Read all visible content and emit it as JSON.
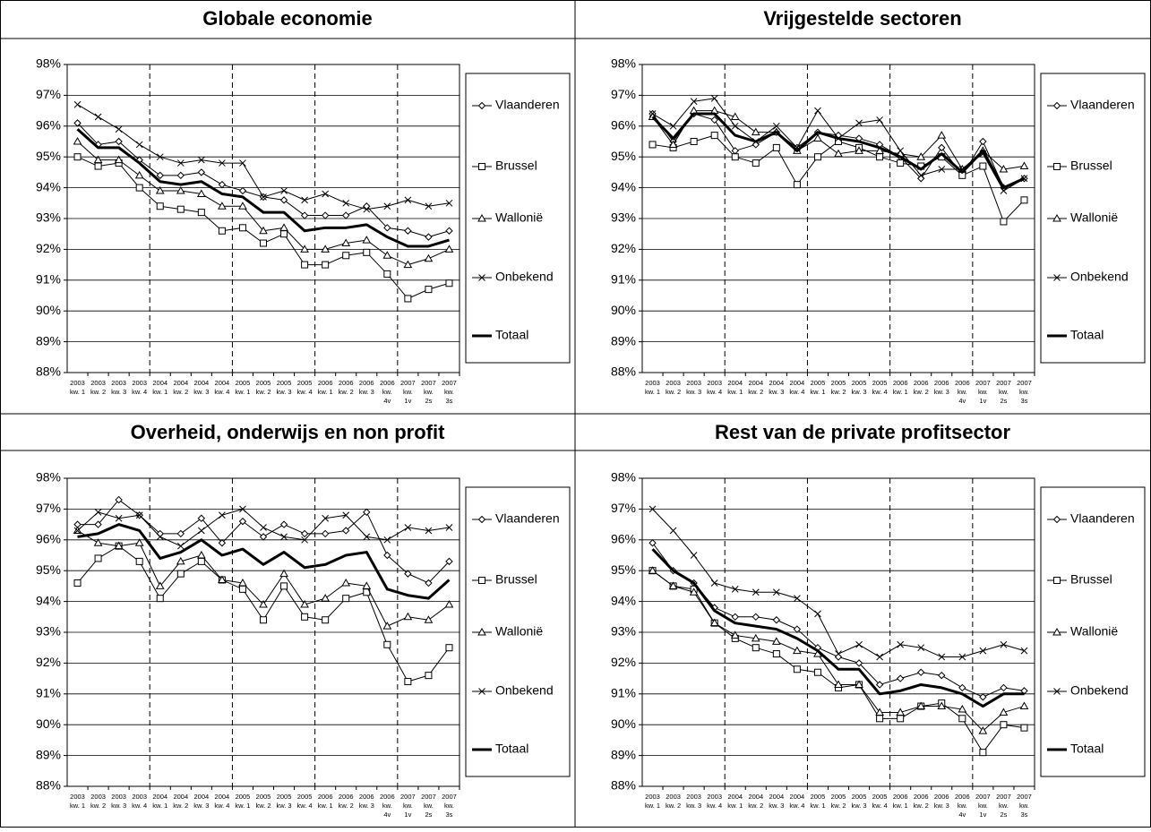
{
  "chart_data": [
    {
      "type": "line",
      "title": "Globale economie",
      "categories": [
        [
          "2003",
          "kw. 1"
        ],
        [
          "2003",
          "kw. 2"
        ],
        [
          "2003",
          "kw. 3"
        ],
        [
          "2003",
          "kw. 4"
        ],
        [
          "2004",
          "kw. 1"
        ],
        [
          "2004",
          "kw. 2"
        ],
        [
          "2004",
          "kw. 3"
        ],
        [
          "2004",
          "kw. 4"
        ],
        [
          "2005",
          "kw. 1"
        ],
        [
          "2005",
          "kw. 2"
        ],
        [
          "2005",
          "kw. 3"
        ],
        [
          "2005",
          "kw. 4"
        ],
        [
          "2006",
          "kw. 1"
        ],
        [
          "2006",
          "kw. 2"
        ],
        [
          "2006",
          "kw. 3"
        ],
        [
          "2006",
          "kw.",
          "4v"
        ],
        [
          "2007",
          "kw.",
          "1v"
        ],
        [
          "2007",
          "kw.",
          "2s"
        ],
        [
          "2007",
          "kw.",
          "3s"
        ]
      ],
      "ylim": [
        88,
        98
      ],
      "yticks": [
        {
          "value": 88,
          "label": "88%"
        },
        {
          "value": 89,
          "label": "89%"
        },
        {
          "value": 90,
          "label": "90%"
        },
        {
          "value": 91,
          "label": "91%"
        },
        {
          "value": 92,
          "label": "92%"
        },
        {
          "value": 93,
          "label": "93%"
        },
        {
          "value": 94,
          "label": "94%"
        },
        {
          "value": 95,
          "label": "95%"
        },
        {
          "value": 96,
          "label": "96%"
        },
        {
          "value": 97,
          "label": "97%"
        },
        {
          "value": 98,
          "label": "98%"
        }
      ],
      "grid": true,
      "series": [
        {
          "name": "Vlaanderen",
          "color": "#000000",
          "marker": "diamond",
          "line_width": 1,
          "values": [
            96.1,
            95.4,
            95.5,
            94.9,
            94.4,
            94.4,
            94.5,
            94.1,
            93.9,
            93.7,
            93.6,
            93.1,
            93.1,
            93.1,
            93.4,
            92.7,
            92.6,
            92.4,
            92.6
          ]
        },
        {
          "name": "Brussel",
          "color": "#000000",
          "marker": "square",
          "line_width": 1,
          "values": [
            95.0,
            94.7,
            94.8,
            94.0,
            93.4,
            93.3,
            93.2,
            92.6,
            92.7,
            92.2,
            92.5,
            91.5,
            91.5,
            91.8,
            91.9,
            91.2,
            90.4,
            90.7,
            90.9
          ]
        },
        {
          "name": "Wallonië",
          "color": "#000000",
          "marker": "triangle",
          "line_width": 1,
          "values": [
            95.5,
            94.9,
            94.9,
            94.4,
            93.9,
            93.9,
            93.8,
            93.4,
            93.4,
            92.6,
            92.7,
            92.0,
            92.0,
            92.2,
            92.3,
            91.8,
            91.5,
            91.7,
            92.0
          ]
        },
        {
          "name": "Onbekend",
          "color": "#000000",
          "marker": "x",
          "line_width": 1,
          "values": [
            96.7,
            96.3,
            95.9,
            95.4,
            95.0,
            94.8,
            94.9,
            94.8,
            94.8,
            93.7,
            93.9,
            93.6,
            93.8,
            93.5,
            93.3,
            93.4,
            93.6,
            93.4,
            93.5
          ]
        },
        {
          "name": "Totaal",
          "color": "#000000",
          "marker": "none",
          "line_width": 3,
          "values": [
            95.9,
            95.3,
            95.3,
            94.8,
            94.2,
            94.1,
            94.2,
            93.8,
            93.7,
            93.2,
            93.2,
            92.6,
            92.7,
            92.7,
            92.8,
            92.4,
            92.1,
            92.1,
            92.3
          ]
        }
      ]
    },
    {
      "type": "line",
      "title": "Vrijgestelde sectoren",
      "categories": [
        [
          "2003",
          "kw. 1"
        ],
        [
          "2003",
          "kw. 2"
        ],
        [
          "2003",
          "kw. 3"
        ],
        [
          "2003",
          "kw. 4"
        ],
        [
          "2004",
          "kw. 1"
        ],
        [
          "2004",
          "kw. 2"
        ],
        [
          "2004",
          "kw. 3"
        ],
        [
          "2004",
          "kw. 4"
        ],
        [
          "2005",
          "kw. 1"
        ],
        [
          "2005",
          "kw. 2"
        ],
        [
          "2005",
          "kw. 3"
        ],
        [
          "2005",
          "kw. 4"
        ],
        [
          "2006",
          "kw. 1"
        ],
        [
          "2006",
          "kw. 2"
        ],
        [
          "2006",
          "kw. 3"
        ],
        [
          "2006",
          "kw.",
          "4v"
        ],
        [
          "2007",
          "kw.",
          "1v"
        ],
        [
          "2007",
          "kw.",
          "2s"
        ],
        [
          "2007",
          "kw.",
          "3s"
        ]
      ],
      "ylim": [
        88,
        98
      ],
      "yticks": [
        {
          "value": 88,
          "label": "88%"
        },
        {
          "value": 89,
          "label": "89%"
        },
        {
          "value": 90,
          "label": "90%"
        },
        {
          "value": 91,
          "label": "91%"
        },
        {
          "value": 92,
          "label": "92%"
        },
        {
          "value": 93,
          "label": "93%"
        },
        {
          "value": 94,
          "label": "94%"
        },
        {
          "value": 95,
          "label": "95%"
        },
        {
          "value": 96,
          "label": "96%"
        },
        {
          "value": 97,
          "label": "97%"
        },
        {
          "value": 98,
          "label": "98%"
        }
      ],
      "grid": true,
      "series": [
        {
          "name": "Vlaanderen",
          "color": "#000000",
          "marker": "diamond",
          "line_width": 1,
          "values": [
            96.4,
            95.5,
            96.4,
            96.2,
            95.2,
            95.4,
            95.8,
            95.3,
            95.8,
            95.7,
            95.6,
            95.4,
            95.0,
            94.3,
            95.3,
            94.4,
            95.5,
            94.0,
            94.3
          ]
        },
        {
          "name": "Brussel",
          "color": "#000000",
          "marker": "square",
          "line_width": 1,
          "values": [
            95.4,
            95.3,
            95.5,
            95.7,
            95.0,
            94.8,
            95.3,
            94.1,
            95.0,
            95.5,
            95.3,
            95.0,
            94.8,
            94.7,
            95.0,
            94.4,
            94.7,
            92.9,
            93.6
          ]
        },
        {
          "name": "Wallonië",
          "color": "#000000",
          "marker": "triangle",
          "line_width": 1,
          "values": [
            96.3,
            95.4,
            96.5,
            96.5,
            96.3,
            95.8,
            95.8,
            95.2,
            95.6,
            95.1,
            95.2,
            95.2,
            95.1,
            95.0,
            95.7,
            94.6,
            95.2,
            94.6,
            94.7
          ]
        },
        {
          "name": "Onbekend",
          "color": "#000000",
          "marker": "x",
          "line_width": 1,
          "values": [
            96.4,
            96.0,
            96.8,
            96.9,
            96.0,
            95.5,
            96.0,
            95.3,
            96.5,
            95.6,
            96.1,
            96.2,
            95.2,
            94.4,
            94.6,
            94.6,
            95.1,
            93.9,
            94.3
          ]
        },
        {
          "name": "Totaal",
          "color": "#000000",
          "marker": "none",
          "line_width": 3,
          "values": [
            96.3,
            95.6,
            96.4,
            96.4,
            95.7,
            95.5,
            95.8,
            95.2,
            95.8,
            95.6,
            95.5,
            95.3,
            95.0,
            94.6,
            95.1,
            94.5,
            95.2,
            94.0,
            94.3
          ]
        }
      ]
    },
    {
      "type": "line",
      "title": "Overheid, onderwijs en non profit",
      "categories": [
        [
          "2003",
          "kw. 1"
        ],
        [
          "2003",
          "kw. 2"
        ],
        [
          "2003",
          "kw. 3"
        ],
        [
          "2003",
          "kw. 4"
        ],
        [
          "2004",
          "kw. 1"
        ],
        [
          "2004",
          "kw. 2"
        ],
        [
          "2004",
          "kw. 3"
        ],
        [
          "2004",
          "kw. 4"
        ],
        [
          "2005",
          "kw. 1"
        ],
        [
          "2005",
          "kw. 2"
        ],
        [
          "2005",
          "kw. 3"
        ],
        [
          "2005",
          "kw. 4"
        ],
        [
          "2006",
          "kw. 1"
        ],
        [
          "2006",
          "kw. 2"
        ],
        [
          "2006",
          "kw. 3"
        ],
        [
          "2006",
          "kw.",
          "4v"
        ],
        [
          "2007",
          "kw.",
          "1v"
        ],
        [
          "2007",
          "kw.",
          "2s"
        ],
        [
          "2007",
          "kw.",
          "3s"
        ]
      ],
      "ylim": [
        88,
        98
      ],
      "yticks": [
        {
          "value": 88,
          "label": "88%"
        },
        {
          "value": 89,
          "label": "89%"
        },
        {
          "value": 90,
          "label": "90%"
        },
        {
          "value": 91,
          "label": "91%"
        },
        {
          "value": 92,
          "label": "92%"
        },
        {
          "value": 93,
          "label": "93%"
        },
        {
          "value": 94,
          "label": "94%"
        },
        {
          "value": 95,
          "label": "95%"
        },
        {
          "value": 96,
          "label": "96%"
        },
        {
          "value": 97,
          "label": "97%"
        },
        {
          "value": 98,
          "label": "98%"
        }
      ],
      "grid": true,
      "series": [
        {
          "name": "Vlaanderen",
          "color": "#000000",
          "marker": "diamond",
          "line_width": 1,
          "values": [
            96.5,
            96.5,
            97.3,
            96.8,
            96.2,
            96.2,
            96.7,
            95.9,
            96.6,
            96.1,
            96.5,
            96.2,
            96.2,
            96.3,
            96.9,
            95.5,
            94.9,
            94.6,
            95.3
          ]
        },
        {
          "name": "Brussel",
          "color": "#000000",
          "marker": "square",
          "line_width": 1,
          "values": [
            94.6,
            95.4,
            95.8,
            95.3,
            94.1,
            94.9,
            95.3,
            94.7,
            94.4,
            93.4,
            94.5,
            93.5,
            93.4,
            94.1,
            94.3,
            92.6,
            91.4,
            91.6,
            92.5
          ]
        },
        {
          "name": "Wallonië",
          "color": "#000000",
          "marker": "triangle",
          "line_width": 1,
          "values": [
            96.3,
            95.9,
            95.8,
            95.9,
            94.5,
            95.3,
            95.5,
            94.7,
            94.6,
            93.9,
            94.9,
            93.9,
            94.1,
            94.6,
            94.5,
            93.2,
            93.5,
            93.4,
            93.9
          ]
        },
        {
          "name": "Onbekend",
          "color": "#000000",
          "marker": "x",
          "line_width": 1,
          "values": [
            96.3,
            96.9,
            96.7,
            96.8,
            96.1,
            95.8,
            96.3,
            96.8,
            97.0,
            96.4,
            96.1,
            96.0,
            96.7,
            96.8,
            96.1,
            96.0,
            96.4,
            96.3,
            96.4
          ]
        },
        {
          "name": "Totaal",
          "color": "#000000",
          "marker": "none",
          "line_width": 3,
          "values": [
            96.1,
            96.2,
            96.5,
            96.3,
            95.4,
            95.6,
            96.0,
            95.5,
            95.7,
            95.2,
            95.6,
            95.1,
            95.2,
            95.5,
            95.6,
            94.4,
            94.2,
            94.1,
            94.7
          ]
        }
      ]
    },
    {
      "type": "line",
      "title": "Rest van de private profitsector",
      "categories": [
        [
          "2003",
          "kw. 1"
        ],
        [
          "2003",
          "kw. 2"
        ],
        [
          "2003",
          "kw. 3"
        ],
        [
          "2003",
          "kw. 4"
        ],
        [
          "2004",
          "kw. 1"
        ],
        [
          "2004",
          "kw. 2"
        ],
        [
          "2004",
          "kw. 3"
        ],
        [
          "2004",
          "kw. 4"
        ],
        [
          "2005",
          "kw. 1"
        ],
        [
          "2005",
          "kw. 2"
        ],
        [
          "2005",
          "kw. 3"
        ],
        [
          "2005",
          "kw. 4"
        ],
        [
          "2006",
          "kw. 1"
        ],
        [
          "2006",
          "kw. 2"
        ],
        [
          "2006",
          "kw. 3"
        ],
        [
          "2006",
          "kw.",
          "4v"
        ],
        [
          "2007",
          "kw.",
          "1v"
        ],
        [
          "2007",
          "kw.",
          "2s"
        ],
        [
          "2007",
          "kw.",
          "3s"
        ]
      ],
      "ylim": [
        88,
        98
      ],
      "yticks": [
        {
          "value": 88,
          "label": "88%"
        },
        {
          "value": 89,
          "label": "89%"
        },
        {
          "value": 90,
          "label": "90%"
        },
        {
          "value": 91,
          "label": "91%"
        },
        {
          "value": 92,
          "label": "92%"
        },
        {
          "value": 93,
          "label": "93%"
        },
        {
          "value": 94,
          "label": "94%"
        },
        {
          "value": 95,
          "label": "95%"
        },
        {
          "value": 96,
          "label": "96%"
        },
        {
          "value": 97,
          "label": "97%"
        },
        {
          "value": 98,
          "label": "98%"
        }
      ],
      "grid": true,
      "series": [
        {
          "name": "Vlaanderen",
          "color": "#000000",
          "marker": "diamond",
          "line_width": 1,
          "values": [
            95.9,
            95.0,
            94.6,
            93.8,
            93.5,
            93.5,
            93.4,
            93.1,
            92.5,
            92.2,
            92.0,
            91.3,
            91.5,
            91.7,
            91.6,
            91.2,
            90.9,
            91.2,
            91.1
          ]
        },
        {
          "name": "Brussel",
          "color": "#000000",
          "marker": "square",
          "line_width": 1,
          "values": [
            95.0,
            94.5,
            94.4,
            93.3,
            92.8,
            92.5,
            92.3,
            91.8,
            91.7,
            91.2,
            91.3,
            90.2,
            90.2,
            90.6,
            90.7,
            90.2,
            89.1,
            90.0,
            89.9
          ]
        },
        {
          "name": "Wallonië",
          "color": "#000000",
          "marker": "triangle",
          "line_width": 1,
          "values": [
            95.0,
            94.5,
            94.3,
            93.3,
            92.9,
            92.8,
            92.7,
            92.4,
            92.3,
            91.3,
            91.3,
            90.4,
            90.4,
            90.6,
            90.6,
            90.5,
            89.8,
            90.4,
            90.6
          ]
        },
        {
          "name": "Onbekend",
          "color": "#000000",
          "marker": "x",
          "line_width": 1,
          "values": [
            97.0,
            96.3,
            95.5,
            94.6,
            94.4,
            94.3,
            94.3,
            94.1,
            93.6,
            92.3,
            92.6,
            92.2,
            92.6,
            92.5,
            92.2,
            92.2,
            92.4,
            92.6,
            92.4
          ]
        },
        {
          "name": "Totaal",
          "color": "#000000",
          "marker": "none",
          "line_width": 3,
          "values": [
            95.7,
            95.0,
            94.6,
            93.7,
            93.3,
            93.2,
            93.1,
            92.8,
            92.4,
            91.8,
            91.8,
            91.0,
            91.1,
            91.3,
            91.2,
            91.0,
            90.6,
            91.0,
            91.0
          ]
        }
      ]
    }
  ]
}
